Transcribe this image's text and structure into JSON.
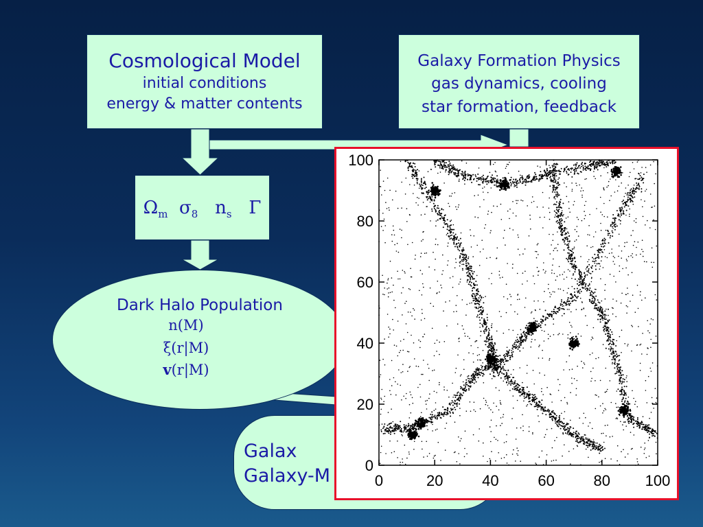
{
  "cosmo": {
    "title": "Cosmological Model",
    "line1": "initial conditions",
    "line2": "energy & matter contents"
  },
  "gfp": {
    "title": "Galaxy Formation Physics",
    "line1": "gas dynamics, cooling",
    "line2": "star formation, feedback"
  },
  "params": {
    "omega": "Ω",
    "omega_sub": "m",
    "sigma": "σ",
    "sigma_sub": "8",
    "n": "n",
    "n_sub": "s",
    "gamma": "Γ"
  },
  "halo": {
    "title": "Dark Halo Population",
    "stat1": "n(M)",
    "stat2_sym": "ξ",
    "stat2_rest": "(r|M)",
    "stat3_bold": "v",
    "stat3_rest": "(r|M)"
  },
  "galaxy": {
    "line1": "Galax",
    "line2": "Galaxy-M"
  },
  "colors": {
    "box_fill": "#ccffdd",
    "text": "#1a1aa6",
    "plot_border": "#e8102a",
    "arrow": "#ccffdd"
  },
  "chart_data": {
    "type": "scatter",
    "title": "",
    "xlabel": "",
    "ylabel": "",
    "xlim": [
      0,
      100
    ],
    "ylim": [
      0,
      100
    ],
    "x_ticks": [
      "0",
      "20",
      "40",
      "60",
      "80",
      "100"
    ],
    "y_ticks": [
      "0",
      "20",
      "40",
      "60",
      "80",
      "100"
    ],
    "filaments": [
      [
        [
          2,
          12
        ],
        [
          12,
          12
        ],
        [
          25,
          18
        ],
        [
          35,
          30
        ],
        [
          45,
          35
        ],
        [
          55,
          45
        ],
        [
          70,
          55
        ],
        [
          85,
          80
        ],
        [
          95,
          95
        ]
      ],
      [
        [
          10,
          100
        ],
        [
          20,
          85
        ],
        [
          30,
          70
        ],
        [
          35,
          55
        ],
        [
          40,
          40
        ],
        [
          42,
          30
        ]
      ],
      [
        [
          62,
          100
        ],
        [
          65,
          80
        ],
        [
          70,
          65
        ],
        [
          80,
          50
        ],
        [
          85,
          35
        ],
        [
          90,
          15
        ],
        [
          100,
          10
        ]
      ],
      [
        [
          40,
          35
        ],
        [
          50,
          25
        ],
        [
          60,
          18
        ],
        [
          70,
          10
        ],
        [
          80,
          5
        ]
      ],
      [
        [
          20,
          100
        ],
        [
          30,
          95
        ],
        [
          45,
          92
        ],
        [
          60,
          95
        ],
        [
          75,
          98
        ],
        [
          85,
          100
        ]
      ]
    ],
    "clusters": [
      [
        12,
        10
      ],
      [
        15,
        14
      ],
      [
        40,
        35
      ],
      [
        55,
        45
      ],
      [
        88,
        18
      ],
      [
        20,
        90
      ],
      [
        85,
        96
      ],
      [
        70,
        40
      ],
      [
        45,
        92
      ]
    ],
    "grid": false
  }
}
